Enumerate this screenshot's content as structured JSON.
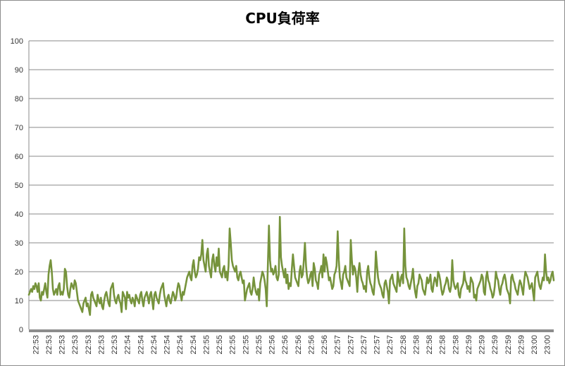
{
  "chart_data": {
    "type": "line",
    "title": "CPU負荷率",
    "xlabel": "",
    "ylabel": "",
    "ylim": [
      0,
      100
    ],
    "yticks": [
      0,
      10,
      20,
      30,
      40,
      50,
      60,
      70,
      80,
      90,
      100
    ],
    "xticks": [
      "22:53",
      "22:53",
      "22:53",
      "22:53",
      "22:53",
      "22:53",
      "22:53",
      "22:54",
      "22:54",
      "22:54",
      "22:54",
      "22:54",
      "22:54",
      "22:55",
      "22:55",
      "22:55",
      "22:55",
      "22:55",
      "22:56",
      "22:56",
      "22:56",
      "22:56",
      "22:56",
      "22:57",
      "22:57",
      "22:57",
      "22:57",
      "22:57",
      "22:58",
      "22:58",
      "22:58",
      "22:58",
      "22:58",
      "22:59",
      "22:59",
      "22:59",
      "22:59",
      "22:59",
      "23:00",
      "23:00"
    ],
    "grid": true,
    "legend": "none",
    "line_color": "#76933c",
    "series": [
      {
        "values": [
          12,
          13,
          14,
          13,
          15,
          14,
          16,
          15,
          13,
          16,
          11,
          10,
          13,
          12,
          14,
          16,
          13,
          11,
          19,
          22,
          24,
          20,
          14,
          12,
          13,
          14,
          12,
          15,
          16,
          12,
          13,
          12,
          14,
          21,
          20,
          15,
          12,
          11,
          14,
          16,
          15,
          14,
          17,
          16,
          13,
          10,
          9,
          8,
          7,
          6,
          9,
          10,
          11,
          8,
          9,
          7,
          5,
          12,
          13,
          11,
          10,
          9,
          8,
          12,
          10,
          9,
          11,
          8,
          7,
          10,
          12,
          13,
          11,
          9,
          8,
          14,
          15,
          16,
          12,
          10,
          9,
          11,
          12,
          10,
          9,
          6,
          13,
          12,
          11,
          7,
          13,
          11,
          12,
          10,
          9,
          11,
          10,
          8,
          12,
          11,
          10,
          9,
          12,
          13,
          10,
          8,
          11,
          12,
          13,
          11,
          9,
          12,
          13,
          10,
          7,
          12,
          13,
          11,
          10,
          9,
          12,
          14,
          15,
          16,
          12,
          10,
          8,
          11,
          12,
          10,
          9,
          11,
          13,
          12,
          10,
          11,
          14,
          16,
          15,
          12,
          10,
          13,
          12,
          14,
          16,
          18,
          19,
          20,
          18,
          17,
          22,
          24,
          20,
          18,
          19,
          21,
          25,
          24,
          26,
          31,
          24,
          22,
          20,
          26,
          28,
          22,
          20,
          18,
          24,
          26,
          22,
          20,
          25,
          22,
          28,
          20,
          19,
          18,
          21,
          22,
          18,
          20,
          17,
          22,
          35,
          30,
          24,
          22,
          21,
          20,
          22,
          18,
          17,
          19,
          20,
          18,
          16,
          17,
          10,
          12,
          14,
          15,
          16,
          13,
          12,
          14,
          18,
          15,
          13,
          12,
          14,
          10,
          16,
          18,
          20,
          19,
          17,
          14,
          8,
          22,
          36,
          24,
          20,
          21,
          19,
          20,
          22,
          18,
          17,
          19,
          39,
          25,
          22,
          20,
          18,
          21,
          16,
          19,
          14,
          16,
          15,
          21,
          26,
          22,
          18,
          17,
          16,
          15,
          20,
          22,
          18,
          19,
          24,
          30,
          22,
          18,
          16,
          17,
          19,
          20,
          15,
          23,
          21,
          17,
          16,
          14,
          19,
          20,
          22,
          18,
          26,
          20,
          25,
          23,
          20,
          17,
          18,
          16,
          14,
          15,
          19,
          20,
          22,
          34,
          24,
          18,
          16,
          14,
          19,
          20,
          22,
          18,
          17,
          16,
          15,
          31,
          24,
          19,
          22,
          21,
          18,
          13,
          20,
          23,
          19,
          17,
          16,
          14,
          15,
          13,
          20,
          22,
          18,
          16,
          15,
          13,
          12,
          17,
          27,
          22,
          18,
          16,
          15,
          14,
          12,
          11,
          16,
          17,
          15,
          13,
          9,
          17,
          18,
          19,
          16,
          15,
          14,
          13,
          20,
          17,
          15,
          18,
          19,
          16,
          35,
          22,
          18,
          17,
          15,
          14,
          16,
          18,
          21,
          16,
          13,
          11,
          15,
          16,
          19,
          18,
          17,
          14,
          13,
          12,
          15,
          18,
          16,
          17,
          19,
          14,
          13,
          16,
          18,
          17,
          15,
          20,
          19,
          17,
          14,
          12,
          13,
          15,
          16,
          18,
          17,
          14,
          13,
          15,
          24,
          17,
          15,
          14,
          15,
          16,
          12,
          11,
          14,
          15,
          16,
          20,
          17,
          16,
          14,
          15,
          13,
          18,
          17,
          16,
          11,
          12,
          10,
          14,
          15,
          16,
          17,
          19,
          18,
          13,
          12,
          18,
          20,
          17,
          16,
          14,
          13,
          11,
          12,
          15,
          20,
          18,
          17,
          14,
          12,
          15,
          16,
          18,
          19,
          17,
          14,
          13,
          12,
          9,
          18,
          19,
          17,
          16,
          14,
          13,
          12,
          15,
          17,
          16,
          14,
          12,
          17,
          20,
          19,
          18,
          16,
          14,
          15,
          16,
          13,
          10,
          18,
          19,
          20,
          17,
          15,
          14,
          16,
          18,
          17,
          26,
          20,
          17,
          18,
          16,
          17,
          19,
          20,
          17
        ]
      }
    ]
  }
}
